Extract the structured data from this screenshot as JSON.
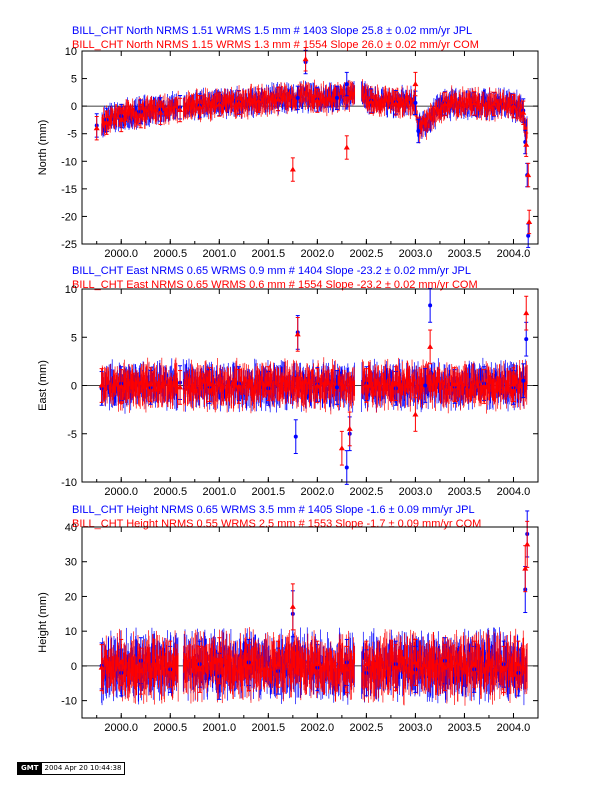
{
  "colors": {
    "jpl": "#0000ff",
    "com": "#ff0000",
    "axis": "#000000"
  },
  "stamp": {
    "logo": "GMT",
    "timestamp": "2004 Apr 20 10:44:38"
  },
  "chart_data": [
    {
      "type": "scatter",
      "panel": "north",
      "titles": [
        "BILL_CHT North NRMS 1.51 WRMS  1.5 mm # 1403 Slope   25.8 ±  0.02 mm/yr JPL",
        "BILL_CHT North NRMS 1.15 WRMS  1.3 mm # 1554 Slope   26.0 ±  0.02 mm/yr COM"
      ],
      "ylabel": "North (mm)",
      "xlim": [
        1999.6,
        2004.25
      ],
      "ylim": [
        -25,
        10
      ],
      "xticks": [
        2000.0,
        2000.5,
        2001.0,
        2001.5,
        2002.0,
        2002.5,
        2003.0,
        2003.5,
        2004.0
      ],
      "xticklabels": [
        "2000.0",
        "2000.5",
        "2001.0",
        "2001.5",
        "2002.0",
        "2002.5",
        "2003.0",
        "2003.5",
        "2004.0"
      ],
      "yticks": [
        -25,
        -20,
        -15,
        -10,
        -5,
        0,
        5,
        10
      ],
      "series": [
        {
          "name": "JPL",
          "color": "#0000ff",
          "marker": "circle",
          "points": [
            [
              1999.75,
              -3.5
            ],
            [
              1999.85,
              -2.5
            ],
            [
              2000.0,
              -1.8
            ],
            [
              2000.2,
              -1.0
            ],
            [
              2000.4,
              -0.6
            ],
            [
              2000.6,
              -0.2
            ],
            [
              2000.8,
              0.1
            ],
            [
              2001.0,
              0.4
            ],
            [
              2001.2,
              0.7
            ],
            [
              2001.4,
              1.0
            ],
            [
              2001.6,
              1.3
            ],
            [
              2001.8,
              1.5
            ],
            [
              2001.88,
              8.0
            ],
            [
              2002.0,
              1.2
            ],
            [
              2002.2,
              1.5
            ],
            [
              2002.3,
              4.0
            ],
            [
              2002.55,
              1.0
            ],
            [
              2002.8,
              0.7
            ],
            [
              2003.0,
              0.6
            ],
            [
              2003.03,
              -4.5
            ],
            [
              2003.3,
              0.5
            ],
            [
              2003.6,
              0.4
            ],
            [
              2003.8,
              0.3
            ],
            [
              2004.0,
              0.1
            ],
            [
              2004.1,
              -0.8
            ],
            [
              2004.12,
              -6.5
            ],
            [
              2004.14,
              -12.5
            ],
            [
              2004.15,
              -23.5
            ]
          ]
        },
        {
          "name": "COM",
          "color": "#ff0000",
          "marker": "triangle",
          "points": [
            [
              1999.75,
              -4.0
            ],
            [
              1999.85,
              -3.0
            ],
            [
              2000.0,
              -2.5
            ],
            [
              2000.2,
              -1.8
            ],
            [
              2000.4,
              -1.2
            ],
            [
              2000.6,
              -0.7
            ],
            [
              2000.8,
              -0.2
            ],
            [
              2001.0,
              0.3
            ],
            [
              2001.2,
              0.6
            ],
            [
              2001.4,
              1.0
            ],
            [
              2001.6,
              1.3
            ],
            [
              2001.75,
              -11.5
            ],
            [
              2001.88,
              8.5
            ],
            [
              2002.0,
              1.0
            ],
            [
              2002.3,
              -7.5
            ],
            [
              2002.55,
              0.8
            ],
            [
              2002.8,
              0.5
            ],
            [
              2003.0,
              4.0
            ],
            [
              2003.3,
              0.4
            ],
            [
              2003.6,
              0.5
            ],
            [
              2003.8,
              0.4
            ],
            [
              2004.0,
              0.0
            ],
            [
              2004.1,
              -1.2
            ],
            [
              2004.13,
              -7.0
            ],
            [
              2004.15,
              -12.5
            ],
            [
              2004.16,
              -21.0
            ]
          ]
        }
      ]
    },
    {
      "type": "scatter",
      "panel": "east",
      "titles": [
        "BILL_CHT East NRMS 0.65 WRMS  0.9 mm # 1404 Slope  -23.2 ±  0.02 mm/yr JPL",
        "BILL_CHT East NRMS 0.65 WRMS  0.6 mm # 1554 Slope  -23.2 ±  0.02 mm/yr COM"
      ],
      "ylabel": "East (mm)",
      "xlim": [
        1999.6,
        2004.25
      ],
      "ylim": [
        -10,
        10
      ],
      "xticks": [
        2000.0,
        2000.5,
        2001.0,
        2001.5,
        2002.0,
        2002.5,
        2003.0,
        2003.5,
        2004.0
      ],
      "xticklabels": [
        "2000.0",
        "2000.5",
        "2001.0",
        "2001.5",
        "2002.0",
        "2002.5",
        "2003.0",
        "2003.5",
        "2004.0"
      ],
      "yticks": [
        -10,
        -5,
        0,
        5,
        10
      ],
      "series": [
        {
          "name": "JPL",
          "color": "#0000ff",
          "marker": "circle",
          "points": [
            [
              1999.8,
              -0.3
            ],
            [
              2000.0,
              0.2
            ],
            [
              2000.3,
              -0.2
            ],
            [
              2000.6,
              0.3
            ],
            [
              2000.9,
              -0.1
            ],
            [
              2001.2,
              0.2
            ],
            [
              2001.5,
              -0.3
            ],
            [
              2001.78,
              -5.3
            ],
            [
              2001.8,
              5.5
            ],
            [
              2002.0,
              0.1
            ],
            [
              2002.2,
              -0.2
            ],
            [
              2002.3,
              -8.5
            ],
            [
              2002.33,
              -5.0
            ],
            [
              2002.5,
              0.2
            ],
            [
              2002.8,
              -0.3
            ],
            [
              2003.1,
              0.0
            ],
            [
              2003.15,
              8.3
            ],
            [
              2003.4,
              -0.1
            ],
            [
              2003.7,
              0.2
            ],
            [
              2004.0,
              -0.2
            ],
            [
              2004.1,
              0.5
            ],
            [
              2004.13,
              4.8
            ]
          ]
        },
        {
          "name": "COM",
          "color": "#ff0000",
          "marker": "triangle",
          "points": [
            [
              1999.8,
              0.0
            ],
            [
              2000.0,
              -0.1
            ],
            [
              2000.3,
              0.1
            ],
            [
              2000.6,
              -0.2
            ],
            [
              2000.9,
              0.1
            ],
            [
              2001.2,
              -0.1
            ],
            [
              2001.5,
              0.2
            ],
            [
              2001.8,
              5.3
            ],
            [
              2002.0,
              0.0
            ],
            [
              2002.25,
              -6.5
            ],
            [
              2002.33,
              -4.5
            ],
            [
              2002.5,
              0.0
            ],
            [
              2002.8,
              0.2
            ],
            [
              2003.0,
              -3.0
            ],
            [
              2003.15,
              4.0
            ],
            [
              2003.4,
              0.1
            ],
            [
              2003.7,
              -0.1
            ],
            [
              2004.0,
              0.1
            ],
            [
              2004.13,
              7.5
            ]
          ]
        }
      ]
    },
    {
      "type": "scatter",
      "panel": "height",
      "titles": [
        "BILL_CHT Height NRMS 0.65 WRMS  3.5 mm # 1405 Slope   -1.6 ±  0.09 mm/yr JPL",
        "BILL_CHT Height NRMS 0.55 WRMS  2.5 mm # 1553 Slope   -1.7 ±  0.09 mm/yr COM"
      ],
      "ylabel": "Height (mm)",
      "xlim": [
        1999.6,
        2004.25
      ],
      "ylim": [
        -15,
        40
      ],
      "xticks": [
        2000.0,
        2000.5,
        2001.0,
        2001.5,
        2002.0,
        2002.5,
        2003.0,
        2003.5,
        2004.0
      ],
      "xticklabels": [
        "2000.0",
        "2000.5",
        "2001.0",
        "2001.5",
        "2002.0",
        "2002.5",
        "2003.0",
        "2003.5",
        "2004.0"
      ],
      "yticks": [
        -10,
        0,
        10,
        20,
        30,
        40
      ],
      "series": [
        {
          "name": "JPL",
          "color": "#0000ff",
          "marker": "circle",
          "points": [
            [
              1999.8,
              0.0
            ],
            [
              2000.0,
              -2.0
            ],
            [
              2000.2,
              1.5
            ],
            [
              2000.5,
              -1.0
            ],
            [
              2000.8,
              0.5
            ],
            [
              2001.0,
              -3.0
            ],
            [
              2001.3,
              1.0
            ],
            [
              2001.6,
              -1.5
            ],
            [
              2001.75,
              15.0
            ],
            [
              2002.0,
              -0.5
            ],
            [
              2002.3,
              1.0
            ],
            [
              2002.5,
              -2.0
            ],
            [
              2002.8,
              0.5
            ],
            [
              2003.0,
              -1.0
            ],
            [
              2003.3,
              1.5
            ],
            [
              2003.6,
              -1.0
            ],
            [
              2003.9,
              0.5
            ],
            [
              2004.05,
              -2.0
            ],
            [
              2004.12,
              22.0
            ],
            [
              2004.14,
              38.0
            ]
          ]
        },
        {
          "name": "COM",
          "color": "#ff0000",
          "marker": "triangle",
          "points": [
            [
              1999.8,
              -0.5
            ],
            [
              2000.0,
              1.0
            ],
            [
              2000.2,
              -1.5
            ],
            [
              2000.5,
              0.5
            ],
            [
              2000.8,
              -1.0
            ],
            [
              2001.0,
              1.5
            ],
            [
              2001.3,
              -0.5
            ],
            [
              2001.6,
              0.5
            ],
            [
              2001.75,
              17.0
            ],
            [
              2002.0,
              0.5
            ],
            [
              2002.3,
              -1.0
            ],
            [
              2002.5,
              0.5
            ],
            [
              2002.8,
              -0.5
            ],
            [
              2003.0,
              1.0
            ],
            [
              2003.3,
              -0.5
            ],
            [
              2003.6,
              0.5
            ],
            [
              2003.9,
              -1.0
            ],
            [
              2004.05,
              0.5
            ],
            [
              2004.12,
              28.0
            ],
            [
              2004.14,
              35.0
            ]
          ]
        }
      ]
    }
  ]
}
